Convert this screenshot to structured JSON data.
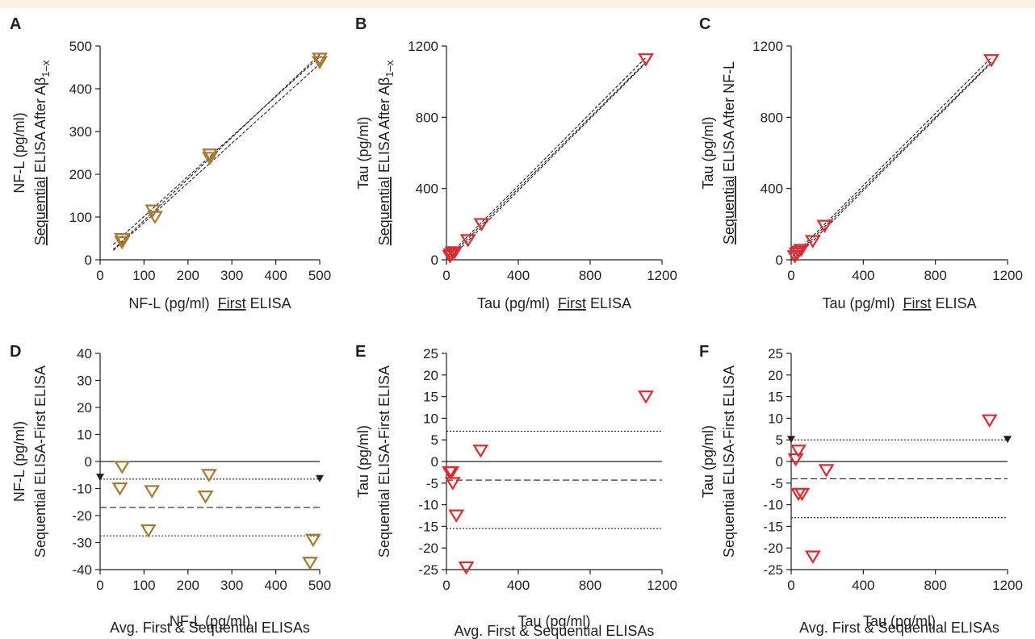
{
  "colors": {
    "brown": "#a8782f",
    "red": "#e0282e",
    "black": "#231f20",
    "background": "#ffffff",
    "top_strip": "#fbf3e4"
  },
  "chart_data": [
    {
      "id": "A",
      "type": "scatter",
      "panel_label": "A",
      "xlabel": "NF-L (pg/ml)  First ELISA",
      "xlabel_underline": "First",
      "ylabel_line1": "NF-L (pg/ml)",
      "ylabel_line2": "Sequential ELISA After Aβ1–x",
      "ylabel_underline": "Sequential",
      "xlim": [
        0,
        500
      ],
      "ylim": [
        0,
        500
      ],
      "xticks": [
        "0",
        "100",
        "200",
        "300",
        "400",
        "500"
      ],
      "yticks": [
        "0",
        "100",
        "200",
        "300",
        "400",
        "500"
      ],
      "marker": "brown-triangle",
      "points": [
        [
          50,
          48
        ],
        [
          50,
          41
        ],
        [
          120,
          115
        ],
        [
          125,
          100
        ],
        [
          250,
          246
        ],
        [
          250,
          238
        ],
        [
          500,
          470
        ],
        [
          500,
          462
        ]
      ],
      "regression": {
        "slope": 0.97,
        "intercept": -5
      },
      "confidence_band": [
        [
          [
            30,
            36
          ],
          [
            500,
            475
          ]
        ],
        [
          [
            30,
            22
          ],
          [
            500,
            458
          ]
        ]
      ]
    },
    {
      "id": "B",
      "type": "scatter",
      "panel_label": "B",
      "xlabel": "Tau (pg/ml)  First ELISA",
      "xlabel_underline": "First",
      "ylabel_line1": "Tau (pg/ml)",
      "ylabel_line2": "Sequential ELISA After Aβ1–x",
      "ylabel_underline": "Sequential",
      "xlim": [
        0,
        1200
      ],
      "ylim": [
        0,
        1200
      ],
      "xticks": [
        "0",
        "400",
        "800",
        "1200"
      ],
      "yticks": [
        "0",
        "400",
        "800",
        "1200"
      ],
      "marker": "red-triangle",
      "points": [
        [
          20,
          20
        ],
        [
          25,
          30
        ],
        [
          35,
          40
        ],
        [
          45,
          42
        ],
        [
          120,
          110
        ],
        [
          195,
          200
        ],
        [
          1110,
          1125
        ]
      ],
      "regression": {
        "slope": 1.0,
        "intercept": 0
      },
      "confidence_band": [
        [
          [
            10,
            22
          ],
          [
            1110,
            1135
          ]
        ],
        [
          [
            10,
            -5
          ],
          [
            1110,
            1105
          ]
        ]
      ]
    },
    {
      "id": "C",
      "type": "scatter",
      "panel_label": "C",
      "xlabel": "Tau (pg/ml)  First ELISA",
      "xlabel_underline": "First",
      "ylabel_line1": "Tau (pg/ml)",
      "ylabel_line2": "Sequential ELISA After NF-L",
      "ylabel_underline": "Sequential",
      "xlim": [
        0,
        1200
      ],
      "ylim": [
        0,
        1200
      ],
      "xticks": [
        "0",
        "400",
        "800",
        "1200"
      ],
      "yticks": [
        "0",
        "400",
        "800",
        "1200"
      ],
      "marker": "red-triangle",
      "points": [
        [
          20,
          20
        ],
        [
          30,
          35
        ],
        [
          40,
          45
        ],
        [
          55,
          55
        ],
        [
          120,
          105
        ],
        [
          185,
          190
        ],
        [
          1110,
          1120
        ]
      ],
      "regression": {
        "slope": 1.0,
        "intercept": 0
      },
      "confidence_band": [
        [
          [
            10,
            22
          ],
          [
            1110,
            1135
          ]
        ],
        [
          [
            10,
            -5
          ],
          [
            1110,
            1105
          ]
        ]
      ]
    },
    {
      "id": "D",
      "type": "scatter",
      "panel_label": "D",
      "xlabel": "NF-L (pg/ml)",
      "xlabel2": "Avg. First & Sequential ELISAs",
      "ylabel_line1": "NF-L (pg/ml)",
      "ylabel_line2": "Sequential ELISA-First ELISA",
      "xlim": [
        0,
        500
      ],
      "ylim": [
        -40,
        40
      ],
      "xticks": [
        "0",
        "100",
        "200",
        "300",
        "400",
        "500"
      ],
      "yticks": [
        "-40",
        "-30",
        "-20",
        "-10",
        "0",
        "10",
        "20",
        "30",
        "40"
      ],
      "marker": "brown-triangle",
      "points": [
        [
          45,
          -10
        ],
        [
          50,
          -2
        ],
        [
          110,
          -25.5
        ],
        [
          118,
          -11
        ],
        [
          240,
          -13
        ],
        [
          248,
          -5
        ],
        [
          478,
          -37.5
        ],
        [
          485,
          -29
        ]
      ],
      "mean_difference": -17,
      "limits_of_agreement": [
        -6.5,
        -27.5
      ],
      "arrow_markers": [
        {
          "x": 0,
          "y": -6
        },
        {
          "x": 500,
          "y": -6.5
        }
      ]
    },
    {
      "id": "E",
      "type": "scatter",
      "panel_label": "E",
      "xlabel": "Tau (pg/ml)",
      "xlabel2": "Avg. First & Sequential ELISAs",
      "ylabel_line1": "Tau (pg/ml)",
      "ylabel_line2": "Sequential ELISA-First ELISA",
      "xlim": [
        0,
        1200
      ],
      "ylim": [
        -25,
        25
      ],
      "xticks": [
        "0",
        "400",
        "800",
        "1200"
      ],
      "yticks": [
        "-25",
        "-20",
        "-15",
        "-10",
        "-5",
        "0",
        "5",
        "10",
        "15",
        "20",
        "25"
      ],
      "marker": "red-triangle",
      "points": [
        [
          18,
          -2.5
        ],
        [
          28,
          -2.5
        ],
        [
          35,
          -5
        ],
        [
          55,
          -12.5
        ],
        [
          110,
          -24.5
        ],
        [
          190,
          2.5
        ],
        [
          1110,
          15
        ]
      ],
      "mean_difference": -4.3,
      "limits_of_agreement": [
        7,
        -15.5
      ]
    },
    {
      "id": "F",
      "type": "scatter",
      "panel_label": "F",
      "xlabel": "Tau (pg/ml)",
      "xlabel2": "Avg. First & Sequential ELISAs",
      "ylabel_line1": "Tau (pg/ml)",
      "ylabel_line2": "Sequential ELISA-First ELISA",
      "xlim": [
        0,
        1200
      ],
      "ylim": [
        -25,
        25
      ],
      "xticks": [
        "0",
        "400",
        "800",
        "1200"
      ],
      "yticks": [
        "-25",
        "-20",
        "-15",
        "-10",
        "-5",
        "0",
        "5",
        "10",
        "15",
        "20",
        "25"
      ],
      "marker": "red-triangle",
      "points": [
        [
          25,
          0.5
        ],
        [
          40,
          2.5
        ],
        [
          40,
          -7.5
        ],
        [
          60,
          -7.5
        ],
        [
          195,
          -2
        ],
        [
          120,
          -22
        ],
        [
          1100,
          9.5
        ]
      ],
      "mean_difference": -4,
      "limits_of_agreement": [
        5,
        -13
      ],
      "arrow_markers": [
        {
          "x": 0,
          "y": 5
        },
        {
          "x": 1200,
          "y": 5
        }
      ]
    }
  ]
}
